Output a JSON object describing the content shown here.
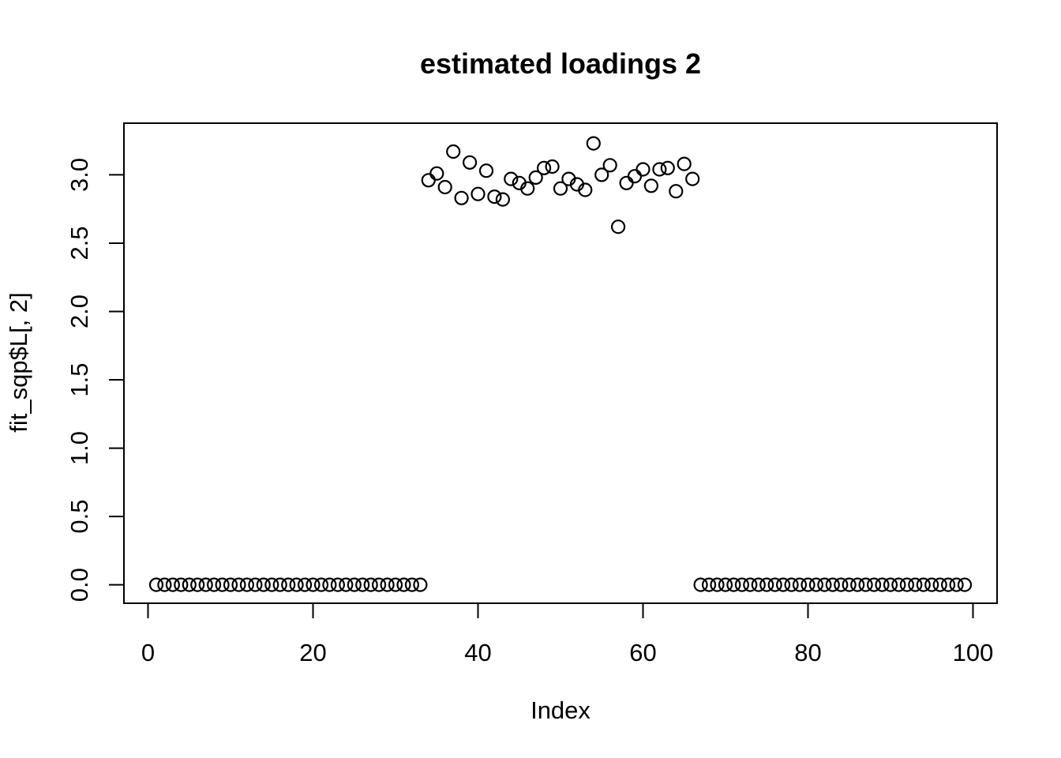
{
  "title": "estimated loadings 2",
  "colors": {
    "foreground": "#000000",
    "background": "#ffffff"
  },
  "chart_data": {
    "type": "scatter",
    "marker": "open-circle",
    "title": "estimated loadings 2",
    "xlabel": "Index",
    "ylabel": "fit_sqp$L[, 2]",
    "grid": false,
    "legend": null,
    "xlim": [
      -2.92,
      102.92
    ],
    "ylim": [
      -0.135,
      3.378
    ],
    "xticks": [
      "0",
      "20",
      "40",
      "60",
      "80",
      "100"
    ],
    "yticks": [
      "0.0",
      "0.5",
      "1.0",
      "1.5",
      "2.0",
      "2.5",
      "3.0"
    ],
    "x": [
      1,
      2,
      3,
      4,
      5,
      6,
      7,
      8,
      9,
      10,
      11,
      12,
      13,
      14,
      15,
      16,
      17,
      18,
      19,
      20,
      21,
      22,
      23,
      24,
      25,
      26,
      27,
      28,
      29,
      30,
      31,
      32,
      33,
      34,
      35,
      36,
      37,
      38,
      39,
      40,
      41,
      42,
      43,
      44,
      45,
      46,
      47,
      48,
      49,
      50,
      51,
      52,
      53,
      54,
      55,
      56,
      57,
      58,
      59,
      60,
      61,
      62,
      63,
      64,
      65,
      66,
      67,
      68,
      69,
      70,
      71,
      72,
      73,
      74,
      75,
      76,
      77,
      78,
      79,
      80,
      81,
      82,
      83,
      84,
      85,
      86,
      87,
      88,
      89,
      90,
      91,
      92,
      93,
      94,
      95,
      96,
      97,
      98,
      99
    ],
    "y": [
      0,
      0,
      0,
      0,
      0,
      0,
      0,
      0,
      0,
      0,
      0,
      0,
      0,
      0,
      0,
      0,
      0,
      0,
      0,
      0,
      0,
      0,
      0,
      0,
      0,
      0,
      0,
      0,
      0,
      0,
      0,
      0,
      0,
      2.96,
      3.01,
      2.91,
      3.17,
      2.83,
      3.09,
      2.86,
      3.03,
      2.84,
      2.82,
      2.97,
      2.94,
      2.9,
      2.98,
      3.05,
      3.06,
      2.9,
      2.97,
      2.93,
      2.89,
      3.23,
      3.0,
      3.07,
      2.62,
      2.94,
      2.99,
      3.04,
      2.92,
      3.04,
      3.05,
      2.88,
      3.08,
      2.97,
      0,
      0,
      0,
      0,
      0,
      0,
      0,
      0,
      0,
      0,
      0,
      0,
      0,
      0,
      0,
      0,
      0,
      0,
      0,
      0,
      0,
      0,
      0,
      0,
      0,
      0,
      0,
      0,
      0,
      0,
      0,
      0,
      0
    ]
  }
}
